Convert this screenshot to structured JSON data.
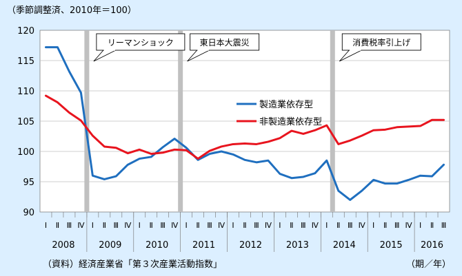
{
  "chart_data": {
    "type": "line",
    "unit_note": "（季節調整済、2010年＝100）",
    "source": "（資料）経済産業省「第３次産業活動指数」",
    "period_label": "（期／年）",
    "ylim": [
      90,
      120
    ],
    "yticks": [
      90,
      95,
      100,
      105,
      110,
      115,
      120
    ],
    "quarter_labels": [
      "Ⅰ",
      "Ⅱ",
      "Ⅲ",
      "Ⅳ",
      "Ⅰ",
      "Ⅱ",
      "Ⅲ",
      "Ⅳ",
      "Ⅰ",
      "Ⅱ",
      "Ⅲ",
      "Ⅳ",
      "Ⅰ",
      "Ⅱ",
      "Ⅲ",
      "Ⅳ",
      "Ⅰ",
      "Ⅱ",
      "Ⅲ",
      "Ⅳ",
      "Ⅰ",
      "Ⅱ",
      "Ⅲ",
      "Ⅳ",
      "Ⅰ",
      "Ⅱ",
      "Ⅲ",
      "Ⅳ",
      "Ⅰ",
      "Ⅱ",
      "Ⅲ",
      "Ⅳ",
      "Ⅰ",
      "Ⅱ",
      "Ⅲ"
    ],
    "years": [
      {
        "label": "2008",
        "start": 0,
        "count": 4
      },
      {
        "label": "2009",
        "start": 4,
        "count": 4
      },
      {
        "label": "2010",
        "start": 8,
        "count": 4
      },
      {
        "label": "2011",
        "start": 12,
        "count": 4
      },
      {
        "label": "2012",
        "start": 16,
        "count": 4
      },
      {
        "label": "2013",
        "start": 20,
        "count": 4
      },
      {
        "label": "2014",
        "start": 24,
        "count": 4
      },
      {
        "label": "2015",
        "start": 28,
        "count": 4
      },
      {
        "label": "2016",
        "start": 32,
        "count": 3
      }
    ],
    "series": [
      {
        "name": "製造業依存型",
        "color": "#1f6fbf",
        "values": [
          117.2,
          117.2,
          113.2,
          109.7,
          96.0,
          95.4,
          95.9,
          97.8,
          98.8,
          99.1,
          100.7,
          102.1,
          100.6,
          98.6,
          99.6,
          100.0,
          99.5,
          98.6,
          98.2,
          98.5,
          96.3,
          95.6,
          95.8,
          96.4,
          98.5,
          93.5,
          92.0,
          93.5,
          95.3,
          94.7,
          94.7,
          95.3,
          96.0,
          95.9,
          97.8
        ]
      },
      {
        "name": "非製造業依存型",
        "color": "#e8141e",
        "values": [
          109.2,
          108.1,
          106.4,
          105.1,
          102.6,
          100.8,
          100.6,
          99.7,
          100.3,
          99.6,
          99.8,
          100.3,
          100.2,
          98.8,
          100.1,
          100.8,
          101.2,
          101.3,
          101.2,
          101.6,
          102.2,
          103.4,
          102.9,
          103.5,
          104.3,
          101.2,
          101.8,
          102.6,
          103.5,
          103.6,
          104.0,
          104.1,
          104.2,
          105.2,
          105.2
        ]
      }
    ],
    "events": [
      {
        "label": "リーマンショック",
        "index": 3.5
      },
      {
        "label": "東日本大震災",
        "index": 11.5
      },
      {
        "label": "消費税率引上げ",
        "index": 24.5
      }
    ]
  }
}
